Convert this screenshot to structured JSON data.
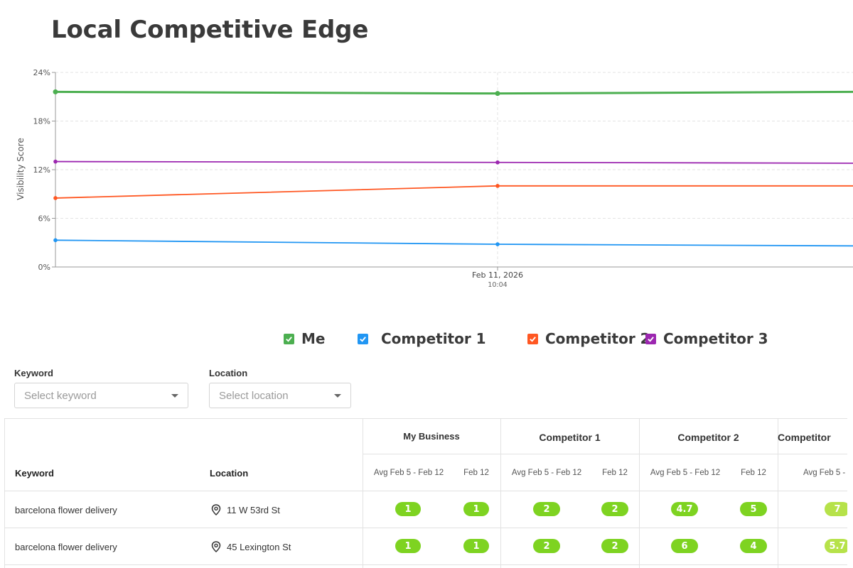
{
  "page": {
    "title": "Local Competitive Edge"
  },
  "chart_data": {
    "type": "line",
    "title": "",
    "xlabel": "",
    "ylabel": "Visibility Score",
    "ylim": [
      0,
      24
    ],
    "y_ticks": [
      "0%",
      "6%",
      "12%",
      "18%",
      "24%"
    ],
    "x_tick": {
      "date": "Feb 11, 2026",
      "time": "10:04"
    },
    "grid": true,
    "legend": "bottom",
    "series": [
      {
        "name": "Me",
        "color": "#4caf50",
        "values": [
          21.6,
          21.4,
          21.6
        ]
      },
      {
        "name": "Competitor 1",
        "color": "#2196f3",
        "values": [
          3.3,
          2.8,
          2.6
        ]
      },
      {
        "name": "Competitor 2",
        "color": "#ff5722",
        "values": [
          8.5,
          10.0,
          10.0
        ]
      },
      {
        "name": "Competitor 3",
        "color": "#9c27b0",
        "values": [
          13.0,
          12.9,
          12.8
        ]
      }
    ]
  },
  "legend": {
    "items": [
      {
        "label": "Me",
        "color": "#4caf50"
      },
      {
        "label": "Competitor 1",
        "color": "#2196f3"
      },
      {
        "label": "Competitor 2",
        "color": "#ff5722"
      },
      {
        "label": "Competitor 3",
        "color": "#9c27b0"
      }
    ]
  },
  "filters": {
    "keyword": {
      "label": "Keyword",
      "placeholder": "Select keyword"
    },
    "location": {
      "label": "Location",
      "placeholder": "Select location"
    }
  },
  "table": {
    "col_keyword": "Keyword",
    "col_location": "Location",
    "groups": [
      "My Business",
      "Competitor 1",
      "Competitor 2",
      "Competitor"
    ],
    "sub_avg": "Avg Feb 5 - Feb 12",
    "sub_avg_cut": "Avg Feb 5 -",
    "sub_day": "Feb 12",
    "rows": [
      {
        "keyword": "barcelona flower delivery",
        "location": "11 W 53rd St",
        "values": [
          "1",
          "1",
          "2",
          "2",
          "4.7",
          "5",
          "7"
        ]
      },
      {
        "keyword": "barcelona flower delivery",
        "location": "45 Lexington St",
        "values": [
          "1",
          "1",
          "2",
          "2",
          "6",
          "4",
          "5.7"
        ]
      }
    ],
    "pill_colors": {
      "strong": "#7ed321",
      "light": "#b6e24a"
    }
  }
}
